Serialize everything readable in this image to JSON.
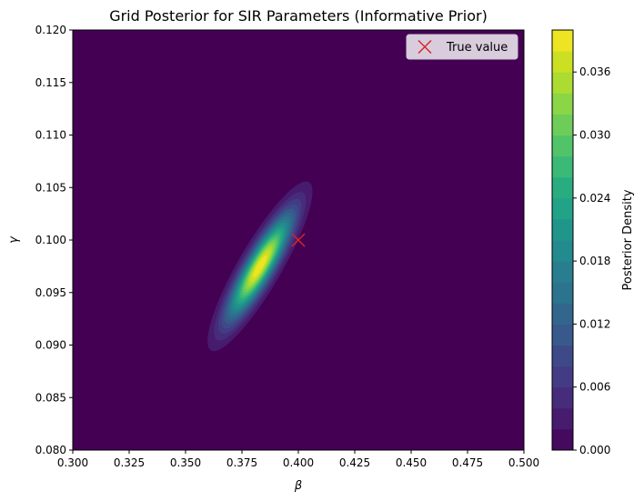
{
  "chart_data": {
    "type": "heatmap",
    "subtype": "filled-contour",
    "title": "Grid Posterior for SIR Parameters (Informative Prior)",
    "xlabel": "β",
    "ylabel": "γ",
    "xlim": [
      0.3,
      0.5
    ],
    "ylim": [
      0.08,
      0.12
    ],
    "x_ticks": [
      "0.300",
      "0.325",
      "0.350",
      "0.375",
      "0.400",
      "0.425",
      "0.450",
      "0.475",
      "0.500"
    ],
    "y_ticks": [
      "0.080",
      "0.085",
      "0.090",
      "0.095",
      "0.100",
      "0.105",
      "0.110",
      "0.115",
      "0.120"
    ],
    "colormap": "viridis",
    "colorbar": {
      "label": "Posterior Density",
      "range": [
        0,
        0.04
      ],
      "levels": 20,
      "ticks": [
        "0.000",
        "0.006",
        "0.012",
        "0.018",
        "0.024",
        "0.030",
        "0.036"
      ]
    },
    "density_peak": {
      "beta": 0.383,
      "gamma": 0.0975,
      "value": 0.04
    },
    "density_spread": {
      "beta_sd": 0.0095,
      "gamma_sd": 0.0033,
      "correlation": 0.88
    },
    "markers": [
      {
        "name": "True value",
        "beta": 0.4,
        "gamma": 0.1,
        "symbol": "x",
        "color": "#d62728"
      }
    ],
    "legend": {
      "position": "top-right",
      "entries": [
        "True value"
      ]
    }
  }
}
